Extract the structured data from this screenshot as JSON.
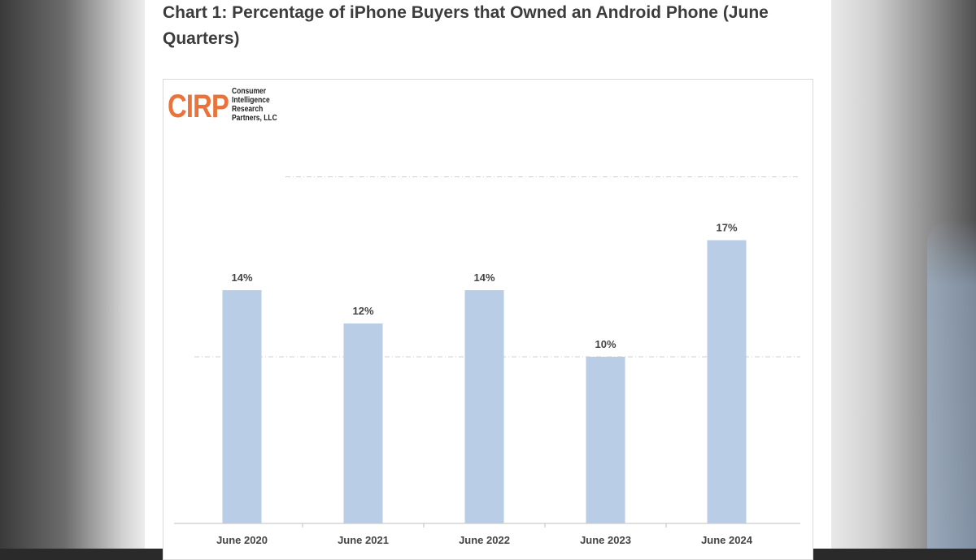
{
  "heading": "Chart 1: Percentage of iPhone Buyers that Owned an Android Phone (June Quarters)",
  "logo": {
    "mark": "CIRP",
    "lines": [
      "Consumer",
      "Intelligence",
      "Research",
      "Partners, LLC"
    ]
  },
  "colors": {
    "bar": "#b9cde6",
    "logo": "#e8743b",
    "text": "#444444"
  },
  "chart_data": {
    "type": "bar",
    "title": "Chart 1: Percentage of iPhone Buyers that Owned an Android Phone (June Quarters)",
    "categories": [
      "June 2020",
      "June 2021",
      "June 2022",
      "June 2023",
      "June 2024"
    ],
    "values": [
      14,
      12,
      14,
      10,
      17
    ],
    "value_labels": [
      "14%",
      "12%",
      "14%",
      "10%",
      "17%"
    ],
    "xlabel": "",
    "ylabel": "",
    "ylim": [
      0,
      20
    ],
    "grid": true,
    "legend": "none"
  }
}
